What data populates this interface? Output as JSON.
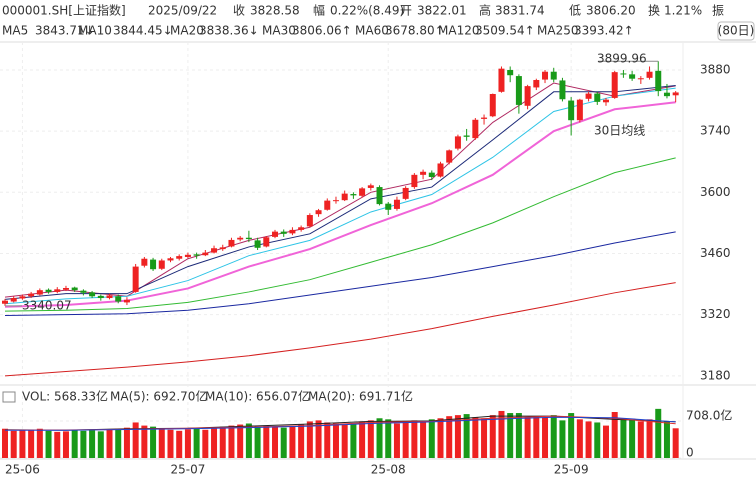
{
  "header": {
    "symbol": "000001.SH[上证指数]",
    "date": "2025/09/22",
    "fields": [
      {
        "label": "收",
        "value": "3828.58"
      },
      {
        "label": "幅",
        "value": "0.22%(8.49)"
      },
      {
        "label": "开",
        "value": "3822.01"
      },
      {
        "label": "高",
        "value": "3831.74"
      },
      {
        "label": "低",
        "value": "3806.20"
      },
      {
        "label": "换",
        "value": "1.21%"
      }
    ],
    "cut_label": "振",
    "period": "(80日)"
  },
  "chart_data": [
    {
      "type": "candlestick",
      "categories": [
        null,
        null,
        "25-06",
        null,
        null,
        null,
        null,
        null,
        null,
        null,
        null,
        null,
        null,
        null,
        null,
        null,
        null,
        null,
        null,
        null,
        null,
        "25-07",
        null,
        null,
        null,
        null,
        null,
        null,
        null,
        null,
        null,
        null,
        null,
        null,
        null,
        null,
        null,
        null,
        null,
        null,
        null,
        null,
        null,
        null,
        "25-08",
        null,
        null,
        null,
        null,
        null,
        null,
        null,
        null,
        null,
        null,
        null,
        null,
        null,
        null,
        null,
        null,
        null,
        null,
        null,
        null,
        "25-09",
        null,
        null,
        null,
        null,
        null,
        null,
        null,
        null,
        null,
        null,
        null,
        null
      ],
      "open": [
        3345,
        3350,
        3357,
        3362,
        3366,
        3377,
        3372,
        3377,
        3382,
        3375,
        3371,
        3363,
        3358,
        3362,
        3348,
        3372,
        3432,
        3446,
        3425,
        3444,
        3448,
        3452,
        3458,
        3456,
        3462,
        3470,
        3476,
        3492,
        3496,
        3490,
        3476,
        3498,
        3510,
        3506,
        3514,
        3522,
        3550,
        3560,
        3580,
        3582,
        3596,
        3592,
        3610,
        3612,
        3574,
        3562,
        3585,
        3612,
        3640,
        3645,
        3636,
        3668,
        3700,
        3730,
        3724,
        3768,
        3774,
        3830,
        3880,
        3866,
        3798,
        3840,
        3858,
        3876,
        3856,
        3810,
        3765,
        3814,
        3826,
        3806,
        3816,
        3872,
        3870,
        3860,
        3862,
        3878,
        3828,
        3822.01
      ],
      "high": [
        3356,
        3362,
        3366,
        3372,
        3380,
        3380,
        3383,
        3386,
        3384,
        3378,
        3374,
        3366,
        3368,
        3366,
        3360,
        3436,
        3452,
        3450,
        3448,
        3452,
        3458,
        3462,
        3462,
        3468,
        3478,
        3480,
        3496,
        3500,
        3512,
        3496,
        3500,
        3514,
        3515,
        3520,
        3524,
        3552,
        3562,
        3586,
        3590,
        3604,
        3600,
        3612,
        3620,
        3616,
        3578,
        3590,
        3614,
        3644,
        3652,
        3650,
        3670,
        3698,
        3732,
        3745,
        3770,
        3778,
        3826,
        3888,
        3888,
        3870,
        3846,
        3860,
        3880,
        3885,
        3862,
        3818,
        3814,
        3830,
        3830,
        3816,
        3878,
        3880,
        3878,
        3866,
        3888,
        3899.96,
        3848,
        3831.74
      ],
      "low": [
        3340.07,
        3348,
        3354,
        3358,
        3364,
        3368,
        3369,
        3374,
        3372,
        3364,
        3358,
        3352,
        3355,
        3346,
        3342,
        3370,
        3428,
        3420,
        3422,
        3440,
        3444,
        3449,
        3448,
        3454,
        3460,
        3466,
        3474,
        3488,
        3486,
        3468,
        3474,
        3495,
        3498,
        3502,
        3510,
        3520,
        3544,
        3558,
        3574,
        3580,
        3585,
        3588,
        3604,
        3570,
        3548,
        3558,
        3582,
        3608,
        3630,
        3628,
        3634,
        3664,
        3696,
        3718,
        3720,
        3755,
        3772,
        3828,
        3852,
        3780,
        3790,
        3834,
        3850,
        3852,
        3808,
        3730,
        3760,
        3808,
        3800,
        3798,
        3814,
        3862,
        3855,
        3848,
        3858,
        3820,
        3815,
        3806.2
      ],
      "close": [
        3352,
        3358,
        3362,
        3368,
        3376,
        3372,
        3378,
        3381,
        3376,
        3370,
        3362,
        3358,
        3364,
        3350,
        3354,
        3430,
        3448,
        3424,
        3444,
        3449,
        3454,
        3457,
        3455,
        3462,
        3472,
        3474,
        3491,
        3496,
        3493,
        3473,
        3497,
        3510,
        3505,
        3514,
        3520,
        3548,
        3559,
        3581,
        3582,
        3597,
        3593,
        3609,
        3616,
        3573,
        3560,
        3583,
        3610,
        3640,
        3647,
        3635,
        3666,
        3696,
        3728,
        3727,
        3766,
        3771,
        3825,
        3883,
        3868,
        3800,
        3843,
        3857,
        3876,
        3858,
        3813,
        3765,
        3812,
        3826,
        3807,
        3812,
        3875,
        3870,
        3860,
        3861,
        3876,
        3831.66,
        3820.09,
        3828.58
      ],
      "up_color": "#ee2222",
      "down_color": "#199a19",
      "ylim": [
        3159,
        3944
      ],
      "yticks": [
        3180,
        3320,
        3460,
        3600,
        3740,
        3880
      ],
      "grid": true,
      "series": [
        {
          "name": "MA5",
          "value_label": "3843.71↓",
          "color": "#b02a62",
          "x": [
            0,
            7,
            14,
            21,
            28,
            35,
            42,
            49,
            56,
            63,
            70,
            77
          ],
          "values": [
            3360,
            3376,
            3362,
            3448,
            3490,
            3520,
            3600,
            3630,
            3760,
            3850,
            3820,
            3843.71
          ]
        },
        {
          "name": "MA10",
          "value_label": "3844.45↓",
          "color": "#1c2a78",
          "x": [
            0,
            7,
            14,
            21,
            28,
            35,
            42,
            49,
            56,
            63,
            70,
            77
          ],
          "values": [
            3355,
            3368,
            3368,
            3430,
            3475,
            3505,
            3585,
            3612,
            3720,
            3830,
            3830,
            3844.45
          ]
        },
        {
          "name": "MA20",
          "value_label": "3838.36↓",
          "color": "#2ec4e6",
          "x": [
            0,
            7,
            14,
            21,
            28,
            35,
            42,
            49,
            56,
            63,
            70,
            77
          ],
          "values": [
            3345,
            3356,
            3362,
            3398,
            3455,
            3490,
            3555,
            3595,
            3680,
            3785,
            3820,
            3838.36
          ]
        },
        {
          "name": "MA30",
          "value_label": "3806.06↑",
          "color": "#f064d8",
          "x": [
            0,
            7,
            14,
            21,
            28,
            35,
            42,
            49,
            56,
            63,
            70,
            77
          ],
          "values": [
            3338,
            3342,
            3352,
            3380,
            3430,
            3470,
            3525,
            3575,
            3640,
            3740,
            3790,
            3806.06
          ]
        },
        {
          "name": "MA60",
          "value_label": "3678.80↑",
          "color": "#33bb33",
          "x": [
            0,
            7,
            14,
            21,
            28,
            35,
            42,
            49,
            56,
            63,
            70,
            77
          ],
          "values": [
            3328,
            3330,
            3334,
            3348,
            3372,
            3400,
            3440,
            3480,
            3530,
            3590,
            3645,
            3678.8
          ]
        },
        {
          "name": "MA120",
          "value_label": "3509.54↑",
          "color": "#1a28a0",
          "x": [
            0,
            7,
            14,
            21,
            28,
            35,
            42,
            49,
            56,
            63,
            70,
            77
          ],
          "values": [
            3318,
            3320,
            3322,
            3330,
            3345,
            3365,
            3385,
            3405,
            3430,
            3455,
            3484,
            3509.54
          ]
        },
        {
          "name": "MA250",
          "value_label": "3393.42↑",
          "color": "#d42020",
          "x": [
            0,
            7,
            14,
            21,
            28,
            35,
            42,
            49,
            56,
            63,
            70,
            77
          ],
          "values": [
            3180,
            3190,
            3200,
            3212,
            3226,
            3244,
            3264,
            3288,
            3316,
            3342,
            3370,
            3393.42
          ]
        }
      ],
      "annotations": [
        {
          "text": "3899.96"
        },
        {
          "text": "3340.07"
        },
        {
          "text": "30日均线"
        }
      ]
    },
    {
      "type": "bar",
      "legend_label": "VOL: 568.33亿",
      "values": [
        560,
        520,
        540,
        530,
        560,
        520,
        500,
        510,
        540,
        520,
        530,
        510,
        540,
        560,
        580,
        680,
        620,
        600,
        560,
        540,
        520,
        550,
        560,
        540,
        580,
        600,
        620,
        640,
        660,
        600,
        620,
        600,
        580,
        610,
        640,
        700,
        720,
        680,
        660,
        640,
        650,
        700,
        720,
        760,
        740,
        660,
        700,
        720,
        680,
        740,
        760,
        800,
        820,
        840,
        780,
        760,
        820,
        900,
        860,
        860,
        780,
        800,
        780,
        820,
        720,
        860,
        740,
        700,
        680,
        620,
        880,
        760,
        720,
        700,
        740,
        940,
        700,
        568.33
      ],
      "ylim": [
        0,
        1014
      ],
      "yticks": [
        0,
        {
          "value": 708,
          "label": "708.0亿"
        }
      ],
      "series": [
        {
          "name": "MA(5): 692.70亿",
          "color": "#222222",
          "x": [
            0,
            7,
            14,
            21,
            28,
            35,
            42,
            49,
            56,
            63,
            70,
            77
          ],
          "values": [
            540,
            530,
            560,
            570,
            610,
            650,
            700,
            710,
            800,
            800,
            740,
            692.7
          ]
        },
        {
          "name": "MA(10): 656.07亿",
          "color": "#e03030",
          "x": [
            0,
            7,
            14,
            21,
            28,
            35,
            42,
            49,
            56,
            63,
            70,
            77
          ],
          "values": [
            535,
            535,
            550,
            570,
            590,
            620,
            680,
            700,
            760,
            800,
            760,
            656.07
          ]
        },
        {
          "name": "MA(20): 691.71亿",
          "color": "#2244cc",
          "x": [
            0,
            7,
            14,
            21,
            28,
            35,
            42,
            49,
            56,
            63,
            70,
            77
          ],
          "values": [
            530,
            532,
            545,
            560,
            580,
            610,
            660,
            690,
            740,
            780,
            770,
            691.71
          ]
        }
      ]
    }
  ]
}
